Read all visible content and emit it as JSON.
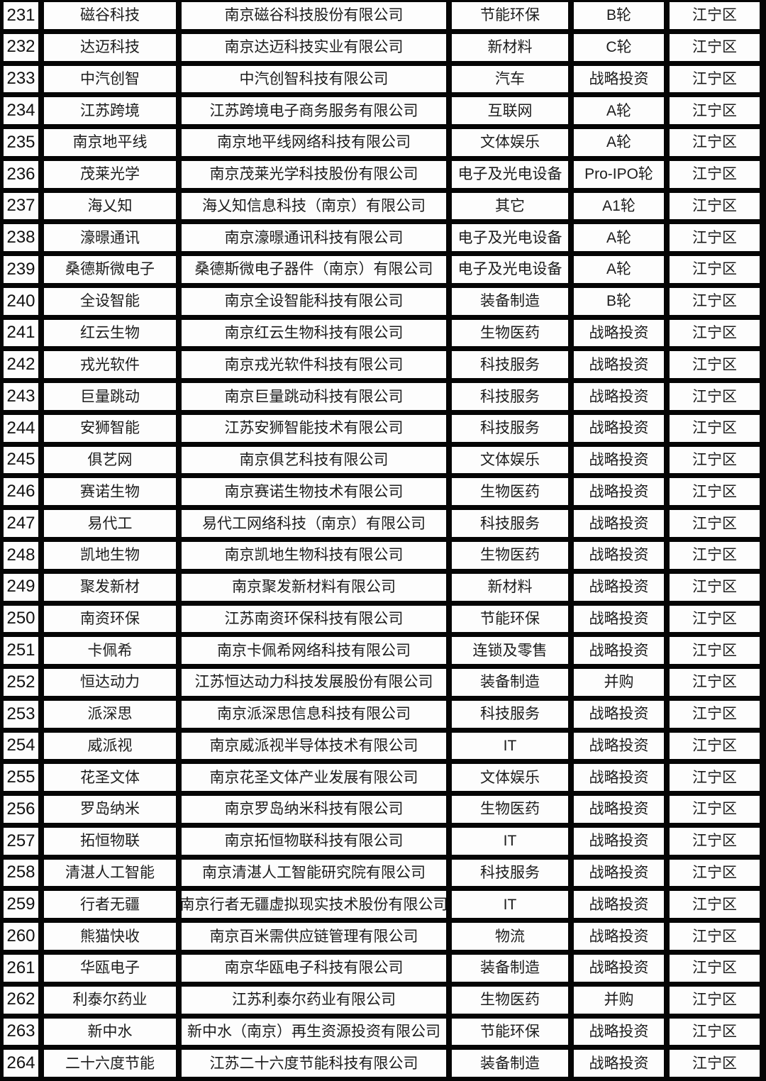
{
  "table": {
    "rows": [
      {
        "no": "231",
        "name": "磁谷科技",
        "company": "南京磁谷科技股份有限公司",
        "industry": "节能环保",
        "round": "B轮",
        "district": "江宁区"
      },
      {
        "no": "232",
        "name": "达迈科技",
        "company": "南京达迈科技实业有限公司",
        "industry": "新材料",
        "round": "C轮",
        "district": "江宁区"
      },
      {
        "no": "233",
        "name": "中汽创智",
        "company": "中汽创智科技有限公司",
        "industry": "汽车",
        "round": "战略投资",
        "district": "江宁区"
      },
      {
        "no": "234",
        "name": "江苏跨境",
        "company": "江苏跨境电子商务服务有限公司",
        "industry": "互联网",
        "round": "A轮",
        "district": "江宁区"
      },
      {
        "no": "235",
        "name": "南京地平线",
        "company": "南京地平线网络科技有限公司",
        "industry": "文体娱乐",
        "round": "A轮",
        "district": "江宁区"
      },
      {
        "no": "236",
        "name": "茂莱光学",
        "company": "南京茂莱光学科技股份有限公司",
        "industry": "电子及光电设备",
        "round": "Pro-IPO轮",
        "district": "江宁区"
      },
      {
        "no": "237",
        "name": "海乂知",
        "company": "海乂知信息科技（南京）有限公司",
        "industry": "其它",
        "round": "A1轮",
        "district": "江宁区"
      },
      {
        "no": "238",
        "name": "濠暻通讯",
        "company": "南京濠暻通讯科技有限公司",
        "industry": "电子及光电设备",
        "round": "A轮",
        "district": "江宁区"
      },
      {
        "no": "239",
        "name": "桑德斯微电子",
        "company": "桑德斯微电子器件（南京）有限公司",
        "industry": "电子及光电设备",
        "round": "A轮",
        "district": "江宁区"
      },
      {
        "no": "240",
        "name": "全设智能",
        "company": "南京全设智能科技有限公司",
        "industry": "装备制造",
        "round": "B轮",
        "district": "江宁区"
      },
      {
        "no": "241",
        "name": "红云生物",
        "company": "南京红云生物科技有限公司",
        "industry": "生物医药",
        "round": "战略投资",
        "district": "江宁区"
      },
      {
        "no": "242",
        "name": "戎光软件",
        "company": "南京戎光软件科技有限公司",
        "industry": "科技服务",
        "round": "战略投资",
        "district": "江宁区"
      },
      {
        "no": "243",
        "name": "巨量跳动",
        "company": "南京巨量跳动科技有限公司",
        "industry": "科技服务",
        "round": "战略投资",
        "district": "江宁区"
      },
      {
        "no": "244",
        "name": "安狮智能",
        "company": "江苏安狮智能技术有限公司",
        "industry": "科技服务",
        "round": "战略投资",
        "district": "江宁区"
      },
      {
        "no": "245",
        "name": "俱艺网",
        "company": "南京俱艺科技有限公司",
        "industry": "文体娱乐",
        "round": "战略投资",
        "district": "江宁区"
      },
      {
        "no": "246",
        "name": "赛诺生物",
        "company": "南京赛诺生物技术有限公司",
        "industry": "生物医药",
        "round": "战略投资",
        "district": "江宁区"
      },
      {
        "no": "247",
        "name": "易代工",
        "company": "易代工网络科技（南京）有限公司",
        "industry": "科技服务",
        "round": "战略投资",
        "district": "江宁区"
      },
      {
        "no": "248",
        "name": "凯地生物",
        "company": "南京凯地生物科技有限公司",
        "industry": "生物医药",
        "round": "战略投资",
        "district": "江宁区"
      },
      {
        "no": "249",
        "name": "聚发新材",
        "company": "南京聚发新材料有限公司",
        "industry": "新材料",
        "round": "战略投资",
        "district": "江宁区"
      },
      {
        "no": "250",
        "name": "南资环保",
        "company": "江苏南资环保科技有限公司",
        "industry": "节能环保",
        "round": "战略投资",
        "district": "江宁区"
      },
      {
        "no": "251",
        "name": "卡佩希",
        "company": "南京卡佩希网络科技有限公司",
        "industry": "连锁及零售",
        "round": "战略投资",
        "district": "江宁区"
      },
      {
        "no": "252",
        "name": "恒达动力",
        "company": "江苏恒达动力科技发展股份有限公司",
        "industry": "装备制造",
        "round": "并购",
        "district": "江宁区"
      },
      {
        "no": "253",
        "name": "派深思",
        "company": "南京派深思信息科技有限公司",
        "industry": "科技服务",
        "round": "战略投资",
        "district": "江宁区"
      },
      {
        "no": "254",
        "name": "威派视",
        "company": "南京威派视半导体技术有限公司",
        "industry": "IT",
        "round": "战略投资",
        "district": "江宁区"
      },
      {
        "no": "255",
        "name": "花圣文体",
        "company": "南京花圣文体产业发展有限公司",
        "industry": "文体娱乐",
        "round": "战略投资",
        "district": "江宁区"
      },
      {
        "no": "256",
        "name": "罗岛纳米",
        "company": "南京罗岛纳米科技有限公司",
        "industry": "生物医药",
        "round": "战略投资",
        "district": "江宁区"
      },
      {
        "no": "257",
        "name": "拓恒物联",
        "company": "南京拓恒物联科技有限公司",
        "industry": "IT",
        "round": "战略投资",
        "district": "江宁区"
      },
      {
        "no": "258",
        "name": "清湛人工智能",
        "company": "南京清湛人工智能研究院有限公司",
        "industry": "科技服务",
        "round": "战略投资",
        "district": "江宁区"
      },
      {
        "no": "259",
        "name": "行者无疆",
        "company": "南京行者无疆虚拟现实技术股份有限公司",
        "industry": "IT",
        "round": "战略投资",
        "district": "江宁区"
      },
      {
        "no": "260",
        "name": "熊猫快收",
        "company": "南京百米需供应链管理有限公司",
        "industry": "物流",
        "round": "战略投资",
        "district": "江宁区"
      },
      {
        "no": "261",
        "name": "华瓯电子",
        "company": "南京华瓯电子科技有限公司",
        "industry": "装备制造",
        "round": "战略投资",
        "district": "江宁区"
      },
      {
        "no": "262",
        "name": "利泰尔药业",
        "company": "江苏利泰尔药业有限公司",
        "industry": "生物医药",
        "round": "并购",
        "district": "江宁区"
      },
      {
        "no": "263",
        "name": "新中水",
        "company": "新中水（南京）再生资源投资有限公司",
        "industry": "节能环保",
        "round": "战略投资",
        "district": "江宁区"
      },
      {
        "no": "264",
        "name": "二十六度节能",
        "company": "江苏二十六度节能科技有限公司",
        "industry": "装备制造",
        "round": "战略投资",
        "district": "江宁区"
      }
    ]
  }
}
